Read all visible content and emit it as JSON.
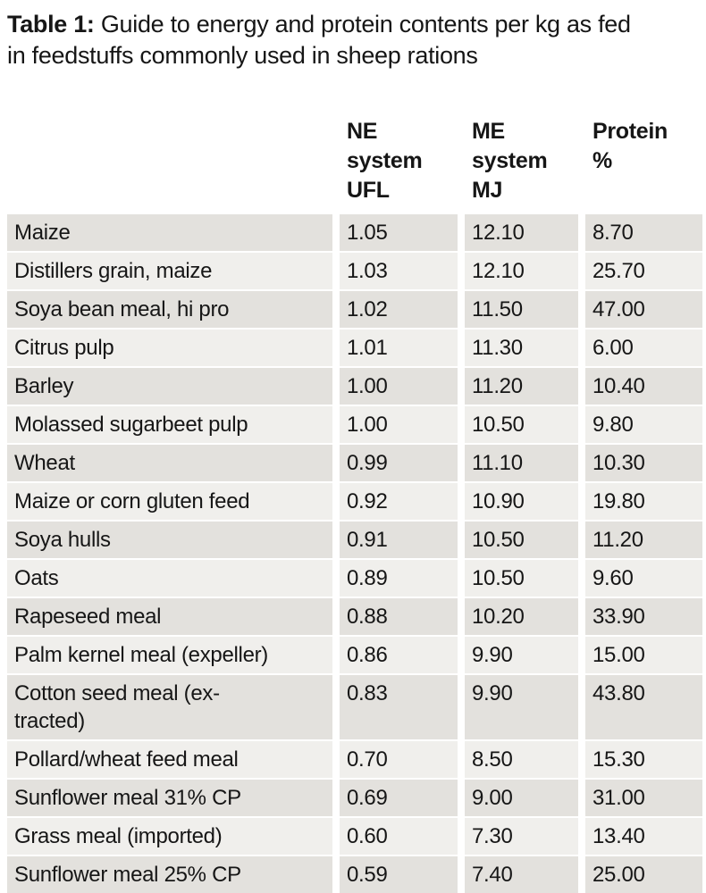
{
  "title": {
    "label": "Table 1:",
    "text": " Guide to energy and protein contents per kg as fed in feedstuffs commonly used in sheep rations"
  },
  "table": {
    "headers": {
      "feed": "",
      "ne": "NE system\nUFL",
      "me": "ME system\nMJ",
      "protein": "Protein\n%"
    },
    "rows": [
      {
        "feed": "Maize",
        "ne_ufl": "1.05",
        "me_mj": "12.10",
        "protein": "8.70"
      },
      {
        "feed": "Distillers grain, maize",
        "ne_ufl": "1.03",
        "me_mj": "12.10",
        "protein": "25.70"
      },
      {
        "feed": "Soya bean meal, hi pro",
        "ne_ufl": "1.02",
        "me_mj": "11.50",
        "protein": "47.00"
      },
      {
        "feed": "Citrus pulp",
        "ne_ufl": "1.01",
        "me_mj": "11.30",
        "protein": "6.00"
      },
      {
        "feed": "Barley",
        "ne_ufl": "1.00",
        "me_mj": "11.20",
        "protein": "10.40"
      },
      {
        "feed": "Molassed sugarbeet pulp",
        "ne_ufl": "1.00",
        "me_mj": "10.50",
        "protein": "9.80"
      },
      {
        "feed": "Wheat",
        "ne_ufl": "0.99",
        "me_mj": "11.10",
        "protein": "10.30"
      },
      {
        "feed": "Maize or corn gluten feed",
        "ne_ufl": "0.92",
        "me_mj": "10.90",
        "protein": "19.80"
      },
      {
        "feed": "Soya hulls",
        "ne_ufl": "0.91",
        "me_mj": "10.50",
        "protein": "11.20"
      },
      {
        "feed": "Oats",
        "ne_ufl": "0.89",
        "me_mj": "10.50",
        "protein": "9.60"
      },
      {
        "feed": "Rapeseed meal",
        "ne_ufl": "0.88",
        "me_mj": "10.20",
        "protein": "33.90"
      },
      {
        "feed": "Palm kernel meal (expeller)",
        "ne_ufl": "0.86",
        "me_mj": "9.90",
        "protein": "15.00"
      },
      {
        "feed": "Cotton seed meal (ex-\ntracted)",
        "ne_ufl": "0.83",
        "me_mj": "9.90",
        "protein": "43.80"
      },
      {
        "feed": "Pollard/wheat feed meal",
        "ne_ufl": "0.70",
        "me_mj": "8.50",
        "protein": "15.30"
      },
      {
        "feed": "Sunflower meal 31% CP",
        "ne_ufl": "0.69",
        "me_mj": "9.00",
        "protein": "31.00"
      },
      {
        "feed": "Grass meal (imported)",
        "ne_ufl": "0.60",
        "me_mj": "7.30",
        "protein": "13.40"
      },
      {
        "feed": "Sunflower meal 25% CP",
        "ne_ufl": "0.59",
        "me_mj": "7.40",
        "protein": "25.00"
      }
    ]
  },
  "colors": {
    "row_band_dark": "#e3e1dd",
    "row_band_light": "#f0efec",
    "text": "#161616",
    "background": "#ffffff"
  }
}
